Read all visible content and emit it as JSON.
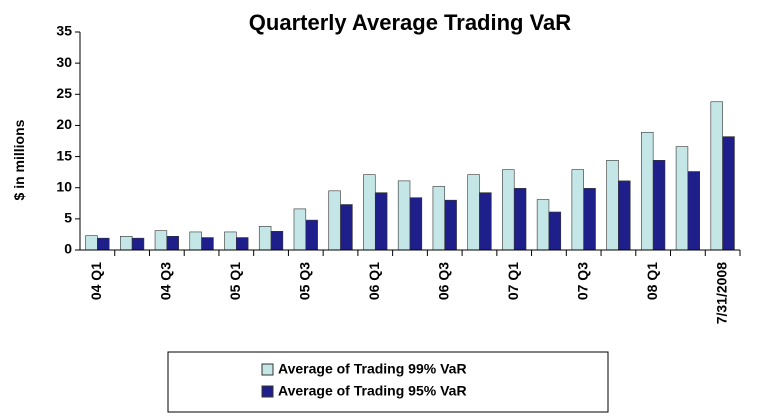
{
  "chart_data": {
    "type": "bar",
    "title": "Quarterly Average Trading VaR",
    "y_label": "$ in millions",
    "categories": [
      "04 Q1",
      null,
      "04 Q3",
      null,
      "05 Q1",
      null,
      "05 Q3",
      null,
      "06 Q1",
      null,
      "06 Q3",
      null,
      "07 Q1",
      null,
      "07 Q3",
      null,
      "08 Q1",
      null,
      "7/31/2008"
    ],
    "series": [
      {
        "name": "Average of Trading 99% VaR",
        "color": "#c4e6e6",
        "values": [
          2.3,
          2.2,
          3.1,
          2.9,
          2.9,
          3.8,
          6.6,
          9.5,
          12.1,
          11.1,
          10.2,
          12.1,
          12.9,
          8.1,
          12.9,
          14.4,
          18.9,
          16.6,
          23.8
        ]
      },
      {
        "name": "Average of Trading 95% VaR",
        "color": "#1f1f8c",
        "values": [
          1.9,
          1.9,
          2.2,
          2.0,
          2.0,
          3.0,
          4.8,
          7.3,
          9.2,
          8.4,
          8.0,
          9.2,
          9.9,
          6.1,
          9.9,
          11.1,
          14.4,
          12.6,
          18.2
        ]
      }
    ],
    "ylim": [
      0,
      35
    ],
    "yticks": [
      0,
      5,
      10,
      15,
      20,
      25,
      30,
      35
    ],
    "grid": false,
    "legend": "bottom"
  }
}
